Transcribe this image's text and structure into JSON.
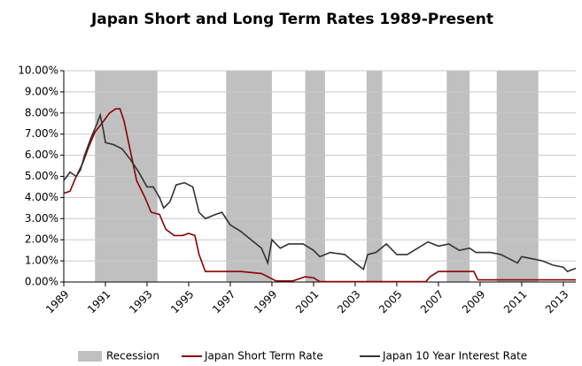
{
  "chart_data": {
    "type": "line",
    "title": "Japan Short and Long Term Rates 1989-Present",
    "xlim": [
      1989,
      2013.6
    ],
    "xticks": [
      1989,
      1991,
      1993,
      1995,
      1997,
      1999,
      2001,
      2003,
      2005,
      2007,
      2009,
      2011,
      2013
    ],
    "ylim": [
      0,
      10
    ],
    "yticks": [
      {
        "value": 0,
        "label": "0.00%"
      },
      {
        "value": 1,
        "label": "1.00%"
      },
      {
        "value": 2,
        "label": "2.00%"
      },
      {
        "value": 3,
        "label": "3.00%"
      },
      {
        "value": 4,
        "label": "4.00%"
      },
      {
        "value": 5,
        "label": "5.00%"
      },
      {
        "value": 6,
        "label": "6.00%"
      },
      {
        "value": 7,
        "label": "7.00%"
      },
      {
        "value": 8,
        "label": "8.00%"
      },
      {
        "value": 9,
        "label": "9.00%"
      },
      {
        "value": 10,
        "label": "10.00%"
      }
    ],
    "grid": true,
    "legend": "bottom",
    "recession": {
      "name": "Recession",
      "color": "#c0c0c0",
      "periods": [
        [
          1990.5,
          1993.5
        ],
        [
          1996.8,
          1999.0
        ],
        [
          2000.6,
          2001.55
        ],
        [
          2003.55,
          2004.3
        ],
        [
          2007.4,
          2008.5
        ],
        [
          2009.8,
          2011.8
        ]
      ]
    },
    "series": [
      {
        "name": "Japan Short Term Rate",
        "color": "#8b0000",
        "x": [
          1989.0,
          1989.3,
          1989.6,
          1989.9,
          1990.2,
          1990.5,
          1990.9,
          1991.2,
          1991.5,
          1991.7,
          1991.9,
          1992.2,
          1992.5,
          1992.9,
          1993.2,
          1993.6,
          1993.9,
          1994.3,
          1994.7,
          1995.0,
          1995.3,
          1995.5,
          1995.8,
          1996.5,
          1997.0,
          1997.5,
          1998.5,
          1999.2,
          2000.0,
          2000.6,
          2001.0,
          2001.3,
          2006.4,
          2006.6,
          2007.0,
          2008.7,
          2008.9,
          2013.6
        ],
        "values": [
          4.2,
          4.3,
          5.0,
          5.6,
          6.4,
          7.1,
          7.6,
          8.0,
          8.2,
          8.2,
          7.6,
          6.2,
          4.8,
          4.0,
          3.3,
          3.2,
          2.5,
          2.2,
          2.2,
          2.3,
          2.2,
          1.3,
          0.5,
          0.5,
          0.5,
          0.5,
          0.4,
          0.05,
          0.05,
          0.25,
          0.2,
          0.02,
          0.02,
          0.25,
          0.5,
          0.5,
          0.1,
          0.1
        ]
      },
      {
        "name": "Japan 10 Year Interest Rate",
        "color": "#333333",
        "x": [
          1989.0,
          1989.3,
          1989.6,
          1989.8,
          1990.0,
          1990.3,
          1990.6,
          1990.75,
          1990.9,
          1991.0,
          1991.4,
          1991.8,
          1992.2,
          1992.6,
          1993.0,
          1993.3,
          1993.6,
          1993.8,
          1994.1,
          1994.4,
          1994.8,
          1995.2,
          1995.5,
          1995.8,
          1996.3,
          1996.6,
          1997.0,
          1997.5,
          1998.0,
          1998.5,
          1998.8,
          1999.0,
          1999.4,
          1999.8,
          2000.5,
          2001.0,
          2001.3,
          2001.8,
          2002.5,
          2003.0,
          2003.4,
          2003.6,
          2004.0,
          2004.5,
          2005.0,
          2005.5,
          2006.0,
          2006.5,
          2007.0,
          2007.5,
          2008.0,
          2008.5,
          2008.8,
          2009.5,
          2010.0,
          2010.8,
          2011.0,
          2011.5,
          2012.0,
          2012.5,
          2013.0,
          2013.2,
          2013.6
        ],
        "values": [
          4.8,
          5.2,
          5.0,
          5.3,
          6.0,
          6.8,
          7.5,
          7.9,
          7.2,
          6.6,
          6.5,
          6.3,
          5.8,
          5.2,
          4.5,
          4.5,
          4.0,
          3.5,
          3.8,
          4.6,
          4.7,
          4.5,
          3.3,
          3.0,
          3.2,
          3.3,
          2.7,
          2.4,
          2.0,
          1.6,
          0.9,
          2.0,
          1.6,
          1.8,
          1.8,
          1.5,
          1.2,
          1.4,
          1.3,
          0.9,
          0.6,
          1.3,
          1.4,
          1.8,
          1.3,
          1.3,
          1.6,
          1.9,
          1.7,
          1.8,
          1.5,
          1.6,
          1.4,
          1.4,
          1.3,
          0.9,
          1.2,
          1.1,
          1.0,
          0.8,
          0.7,
          0.5,
          0.65
        ]
      }
    ]
  }
}
